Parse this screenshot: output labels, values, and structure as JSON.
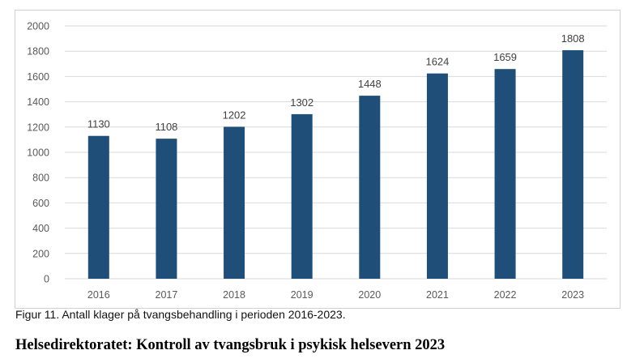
{
  "chart_data": {
    "type": "bar",
    "categories": [
      "2016",
      "2017",
      "2018",
      "2019",
      "2020",
      "2021",
      "2022",
      "2023"
    ],
    "values": [
      1130,
      1108,
      1202,
      1302,
      1448,
      1624,
      1659,
      1808
    ],
    "title": "",
    "xlabel": "",
    "ylabel": "",
    "ylim": [
      0,
      2000
    ],
    "yticks": [
      0,
      200,
      400,
      600,
      800,
      1000,
      1200,
      1400,
      1600,
      1800,
      2000
    ],
    "grid": true,
    "legend": "none",
    "data_labels": true,
    "bar_color": "#1f4e79",
    "gridline_color": "#d9d9d9"
  },
  "caption": "Figur 11. Antall klager på tvangsbehandling i perioden 2016-2023.",
  "footer_title": "Helsedirektoratet: Kontroll av tvangsbruk i psykisk helsevern 2023"
}
